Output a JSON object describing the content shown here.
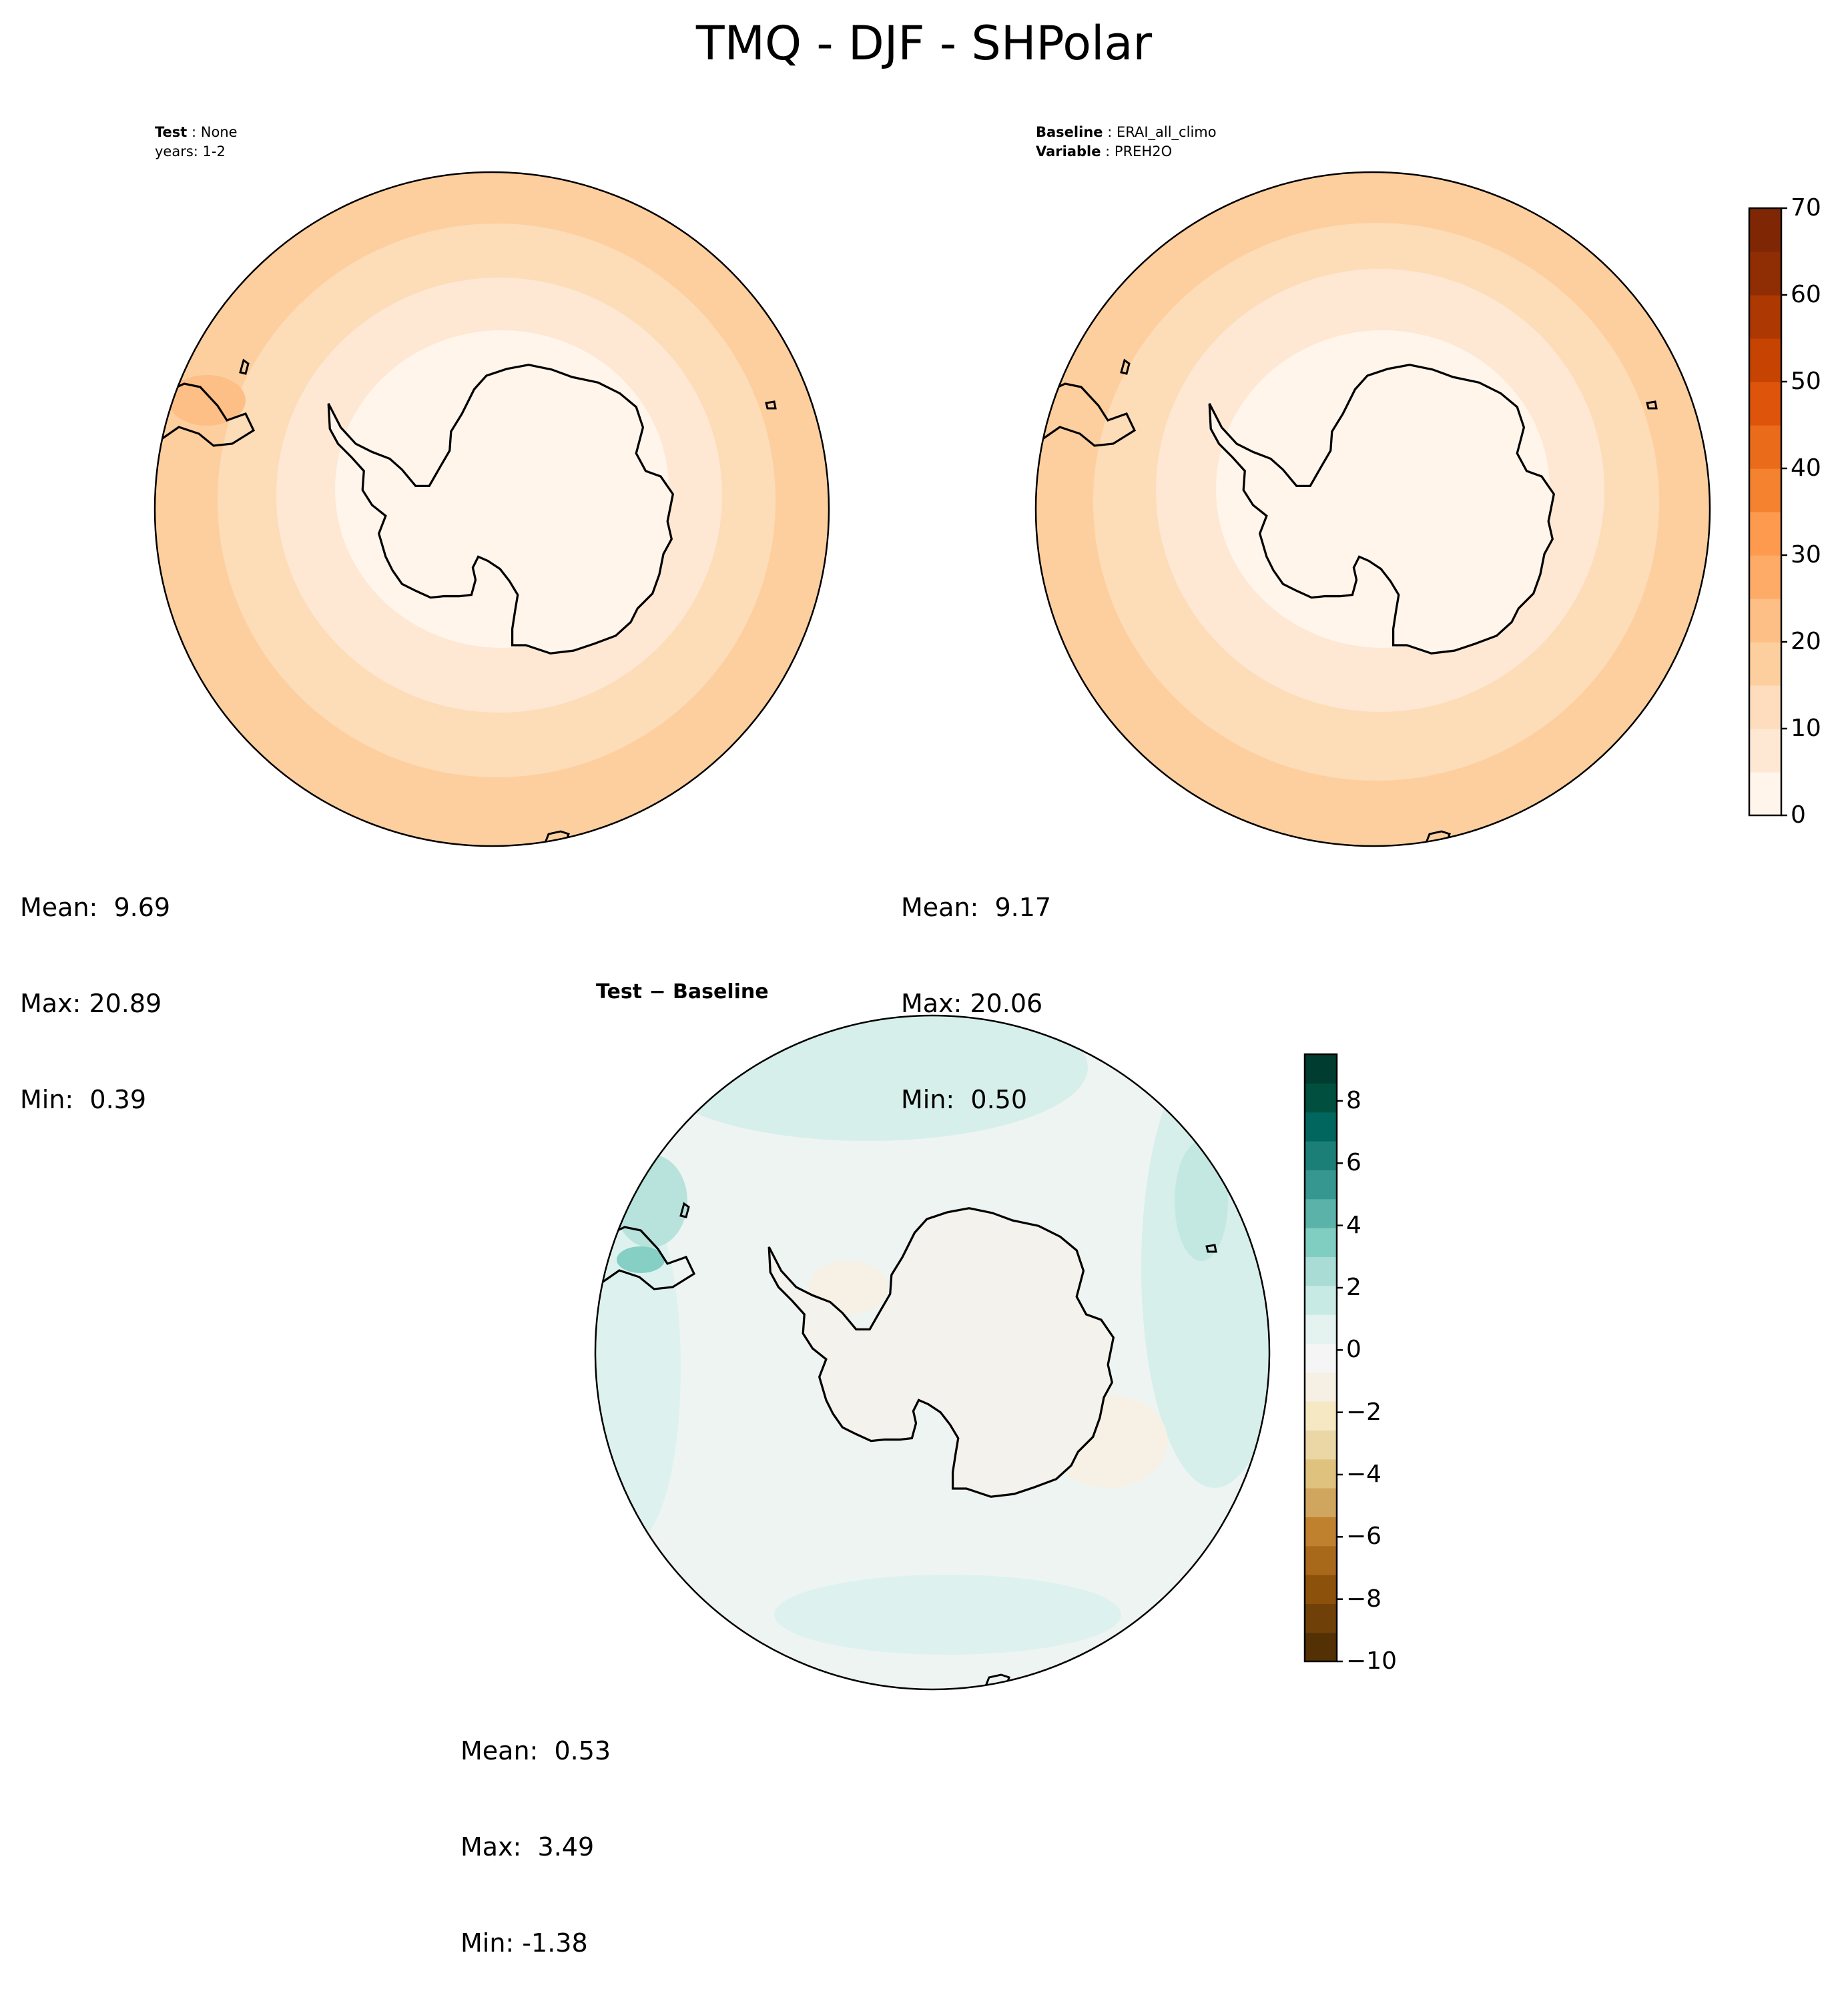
{
  "figure_title": "TMQ - DJF - SHPolar",
  "colors": {
    "coast": "#000000",
    "test_cmap": [
      "#fff5eb",
      "#fee8d3",
      "#fdddbd",
      "#fdcf9f",
      "#fdbf86",
      "#fdab67",
      "#fd9a4e",
      "#f4822e",
      "#ea6b19",
      "#dd540a",
      "#c74302",
      "#ad3802",
      "#8f2d04",
      "#7f2704"
    ],
    "diff_cmap": [
      "#543005",
      "#6f4109",
      "#8c510a",
      "#a8691b",
      "#bf812d",
      "#d0a55e",
      "#dfc27d",
      "#ebd7a6",
      "#f6e8c3",
      "#f5f0e3",
      "#f5f5f5",
      "#e4f2f0",
      "#c7eae5",
      "#a9dcd5",
      "#80cdc1",
      "#5ab2a8",
      "#35978f",
      "#1c7f77",
      "#01665e",
      "#01503f",
      "#003c30"
    ]
  },
  "panels": {
    "test": {
      "label_bold": "Test",
      "label_value": "None",
      "line2": "years: 1-2",
      "stats": [
        "Mean:  9.69",
        "Max: 20.89",
        "Min:  0.39"
      ]
    },
    "baseline": {
      "label_bold": "Baseline",
      "label_value": "ERAI_all_climo",
      "var_bold": "Variable",
      "var_value": "PREH2O",
      "stats": [
        "Mean:  9.17",
        "Max: 20.06",
        "Min:  0.50"
      ]
    },
    "diff": {
      "title": "Test − Baseline",
      "stats": [
        "Mean:  0.53",
        "Max:  3.49",
        "Min: -1.38"
      ]
    }
  },
  "colorbars": {
    "main": {
      "min": 0,
      "max": 70,
      "ticks": [
        "0",
        "10",
        "20",
        "30",
        "40",
        "50",
        "60",
        "70"
      ]
    },
    "diff": {
      "min": -10,
      "max": 9.5,
      "ticks": [
        "8",
        "6",
        "4",
        "2",
        "0",
        "−2",
        "−4",
        "−6",
        "−8",
        "−10"
      ]
    }
  },
  "chart_data": [
    {
      "type": "heatmap",
      "title": "Test : None / years: 1-2",
      "field": "TMQ",
      "season": "DJF",
      "region": "SHPolar",
      "colorbar_range": [
        0,
        70
      ],
      "mean": 9.69,
      "max": 20.89,
      "min": 0.39
    },
    {
      "type": "heatmap",
      "title": "Baseline : ERAI_all_climo / Variable : PREH2O",
      "colorbar_range": [
        0,
        70
      ],
      "mean": 9.17,
      "max": 20.06,
      "min": 0.5
    },
    {
      "type": "heatmap",
      "title": "Test − Baseline",
      "colorbar_range": [
        -10,
        9.5
      ],
      "mean": 0.53,
      "max": 3.49,
      "min": -1.38
    }
  ]
}
